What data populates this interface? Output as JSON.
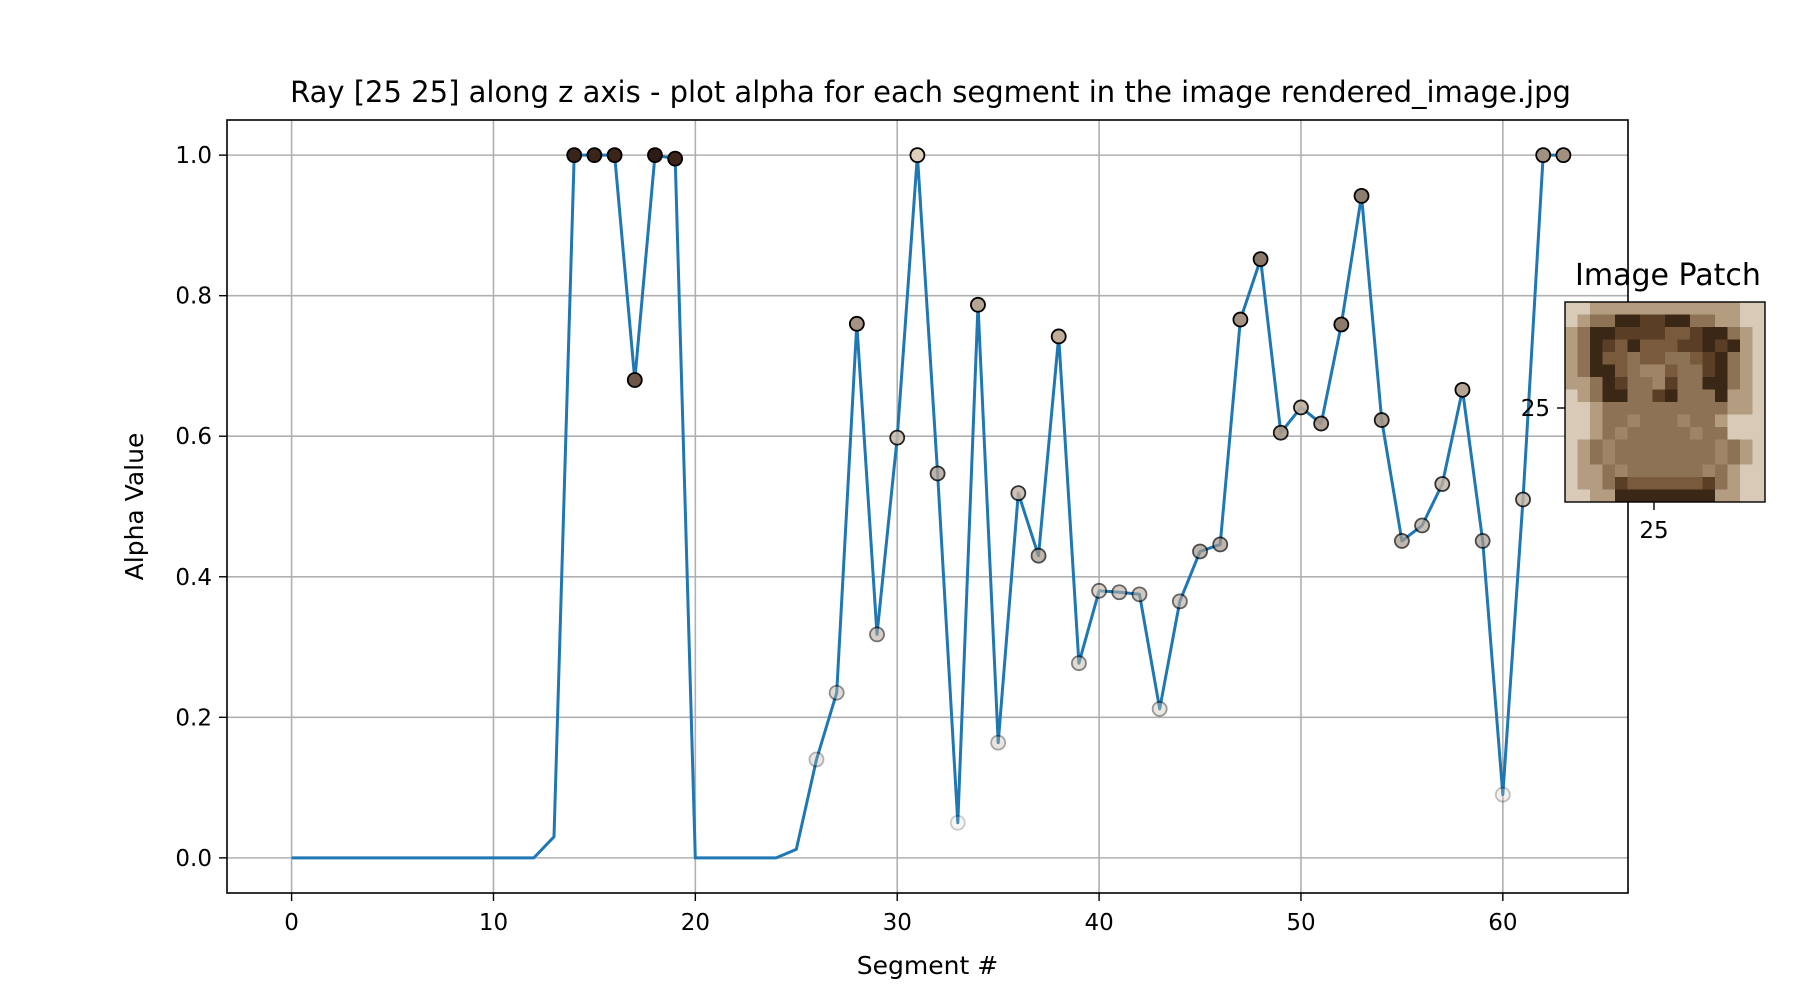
{
  "chart_data": {
    "type": "line",
    "title": "Ray [25 25] along z axis - plot alpha for each segment in the image rendered_image.jpg",
    "xlabel": "Segment #",
    "ylabel": "Alpha Value",
    "xlim": [
      -3.2,
      66.2
    ],
    "ylim": [
      -0.05,
      1.05
    ],
    "xticks": [
      0,
      10,
      20,
      30,
      40,
      50,
      60
    ],
    "yticks": [
      0.0,
      0.2,
      0.4,
      0.6,
      0.8,
      1.0
    ],
    "ytick_labels": [
      "0.0",
      "0.2",
      "0.4",
      "0.6",
      "0.8",
      "1.0"
    ],
    "grid": true,
    "line_color": "#1f77b4",
    "x": [
      0,
      1,
      2,
      3,
      4,
      5,
      6,
      7,
      8,
      9,
      10,
      11,
      12,
      13,
      14,
      15,
      16,
      17,
      18,
      19,
      20,
      21,
      22,
      23,
      24,
      25,
      26,
      27,
      28,
      29,
      30,
      31,
      32,
      33,
      34,
      35,
      36,
      37,
      38,
      39,
      40,
      41,
      42,
      43,
      44,
      45,
      46,
      47,
      48,
      49,
      50,
      51,
      52,
      53,
      54,
      55,
      56,
      57,
      58,
      59,
      60,
      61,
      62,
      63
    ],
    "values": [
      0,
      0,
      0,
      0,
      0,
      0,
      0,
      0,
      0,
      0,
      0,
      0,
      0,
      0.03,
      1.0,
      1.0,
      1.0,
      0.68,
      1.0,
      0.995,
      0,
      0,
      0,
      0,
      0,
      0.012,
      0.14,
      0.235,
      0.76,
      0.318,
      0.598,
      1.0,
      0.547,
      0.05,
      0.787,
      0.164,
      0.519,
      0.43,
      0.742,
      0.277,
      0.38,
      0.378,
      0.375,
      0.212,
      0.365,
      0.436,
      0.446,
      0.766,
      0.852,
      0.605,
      0.641,
      0.618,
      0.759,
      0.942,
      0.623,
      0.451,
      0.473,
      0.532,
      0.666,
      0.451,
      0.09,
      0.51,
      1.0,
      1.0
    ],
    "markers": [
      {
        "x": 14,
        "y": 1.0,
        "color": "#3b2418",
        "alpha": 1.0
      },
      {
        "x": 15,
        "y": 1.0,
        "color": "#3b2418",
        "alpha": 1.0
      },
      {
        "x": 16,
        "y": 1.0,
        "color": "#3b2418",
        "alpha": 1.0
      },
      {
        "x": 17,
        "y": 0.68,
        "color": "#6e5648",
        "alpha": 1.0
      },
      {
        "x": 18,
        "y": 1.0,
        "color": "#2e1c14",
        "alpha": 1.0
      },
      {
        "x": 19,
        "y": 0.995,
        "color": "#3b2418",
        "alpha": 1.0
      },
      {
        "x": 26,
        "y": 0.14,
        "color": "#c0b0a0",
        "alpha": 0.3
      },
      {
        "x": 27,
        "y": 0.235,
        "color": "#c0b0a0",
        "alpha": 0.45
      },
      {
        "x": 28,
        "y": 0.76,
        "color": "#a59484",
        "alpha": 1.0
      },
      {
        "x": 29,
        "y": 0.318,
        "color": "#b8a898",
        "alpha": 0.55
      },
      {
        "x": 30,
        "y": 0.598,
        "color": "#c8baa8",
        "alpha": 0.85
      },
      {
        "x": 31,
        "y": 1.0,
        "color": "#ddd0bd",
        "alpha": 1.0
      },
      {
        "x": 32,
        "y": 0.547,
        "color": "#b0a090",
        "alpha": 0.8
      },
      {
        "x": 33,
        "y": 0.05,
        "color": "#d8ccbc",
        "alpha": 0.2
      },
      {
        "x": 34,
        "y": 0.787,
        "color": "#b5a593",
        "alpha": 1.0
      },
      {
        "x": 35,
        "y": 0.164,
        "color": "#c5b5a5",
        "alpha": 0.35
      },
      {
        "x": 36,
        "y": 0.519,
        "color": "#c3b3a0",
        "alpha": 0.8
      },
      {
        "x": 37,
        "y": 0.43,
        "color": "#a89888",
        "alpha": 0.7
      },
      {
        "x": 38,
        "y": 0.742,
        "color": "#c0ae98",
        "alpha": 1.0
      },
      {
        "x": 39,
        "y": 0.277,
        "color": "#c5b8a8",
        "alpha": 0.5
      },
      {
        "x": 40,
        "y": 0.38,
        "color": "#c8baa8",
        "alpha": 0.6
      },
      {
        "x": 41,
        "y": 0.378,
        "color": "#b8aa9a",
        "alpha": 0.6
      },
      {
        "x": 42,
        "y": 0.375,
        "color": "#b5a595",
        "alpha": 0.6
      },
      {
        "x": 43,
        "y": 0.212,
        "color": "#d0c4b4",
        "alpha": 0.4
      },
      {
        "x": 44,
        "y": 0.365,
        "color": "#b8a898",
        "alpha": 0.6
      },
      {
        "x": 45,
        "y": 0.436,
        "color": "#a89888",
        "alpha": 0.7
      },
      {
        "x": 46,
        "y": 0.446,
        "color": "#a89888",
        "alpha": 0.7
      },
      {
        "x": 47,
        "y": 0.766,
        "color": "#a59484",
        "alpha": 1.0
      },
      {
        "x": 48,
        "y": 0.852,
        "color": "#8a7868",
        "alpha": 1.0
      },
      {
        "x": 49,
        "y": 0.605,
        "color": "#a89888",
        "alpha": 0.9
      },
      {
        "x": 50,
        "y": 0.641,
        "color": "#c0b0a0",
        "alpha": 0.9
      },
      {
        "x": 51,
        "y": 0.618,
        "color": "#a89888",
        "alpha": 0.9
      },
      {
        "x": 52,
        "y": 0.759,
        "color": "#8c7a6a",
        "alpha": 1.0
      },
      {
        "x": 53,
        "y": 0.942,
        "color": "#8e7e70",
        "alpha": 1.0
      },
      {
        "x": 54,
        "y": 0.623,
        "color": "#a59585",
        "alpha": 0.9
      },
      {
        "x": 55,
        "y": 0.451,
        "color": "#a89888",
        "alpha": 0.7
      },
      {
        "x": 56,
        "y": 0.473,
        "color": "#b3a393",
        "alpha": 0.7
      },
      {
        "x": 57,
        "y": 0.532,
        "color": "#c0b0a0",
        "alpha": 0.8
      },
      {
        "x": 58,
        "y": 0.666,
        "color": "#b5a595",
        "alpha": 1.0
      },
      {
        "x": 59,
        "y": 0.451,
        "color": "#a89888",
        "alpha": 0.7
      },
      {
        "x": 60,
        "y": 0.09,
        "color": "#d8ccbc",
        "alpha": 0.25
      },
      {
        "x": 61,
        "y": 0.51,
        "color": "#c3b3a3",
        "alpha": 0.8
      },
      {
        "x": 62,
        "y": 1.0,
        "color": "#a09080",
        "alpha": 1.0
      },
      {
        "x": 63,
        "y": 1.0,
        "color": "#a09080",
        "alpha": 1.0
      }
    ]
  },
  "inset": {
    "title": "Image Patch",
    "ytick_label": "25",
    "xtick_label": "25",
    "palette": [
      "#c8b9a4",
      "#a08468",
      "#7a5a3c",
      "#5b3e26",
      "#3b2716",
      "#8e7256",
      "#b49c80",
      "#d8cab6"
    ],
    "pixels": [
      "7766666666666677",
      "7655443344556677",
      "6544333322344567",
      "6543242223343467",
      "6542252255234567",
      "6544251125534567",
      "6654355135544567",
      "7654455345554667",
      "7765555555555667",
      "7765515551556777",
      "7765155555155777",
      "7651555555551567",
      "7651555555551567",
      "7665155555515677",
      "7665322222235677",
      "7766444444446677"
    ]
  }
}
